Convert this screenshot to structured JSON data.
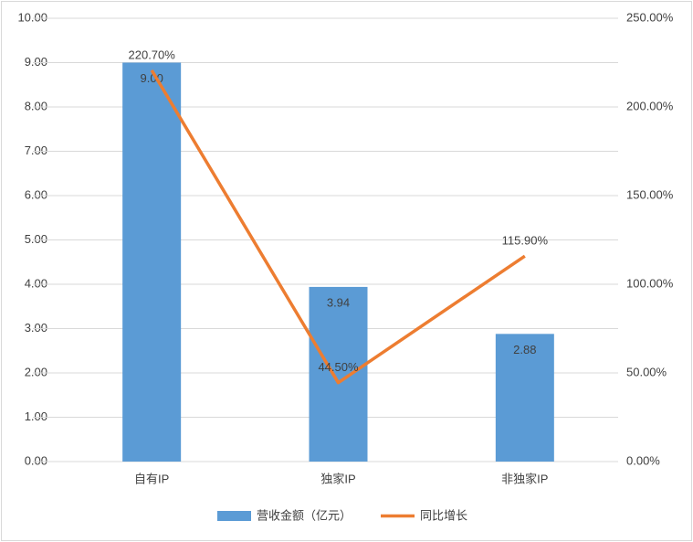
{
  "chart_data": {
    "type": "bar-line",
    "categories": [
      "自有IP",
      "独家IP",
      "非独家IP"
    ],
    "series": [
      {
        "name": "营收金额（亿元）",
        "type": "bar",
        "color": "#5b9bd5",
        "values": [
          9.0,
          3.94,
          2.88
        ],
        "value_labels": [
          "9.00",
          "3.94",
          "2.88"
        ]
      },
      {
        "name": "同比增长",
        "type": "line",
        "axis": "y2",
        "color": "#ed7d31",
        "values": [
          220.7,
          44.5,
          115.9
        ],
        "value_labels": [
          "220.70%",
          "44.50%",
          "115.90%"
        ]
      }
    ],
    "ylim": [
      0,
      10
    ],
    "yticks": [
      {
        "value": 0,
        "label": "0.00"
      },
      {
        "value": 1,
        "label": "1.00"
      },
      {
        "value": 2,
        "label": "2.00"
      },
      {
        "value": 3,
        "label": "3.00"
      },
      {
        "value": 4,
        "label": "4.00"
      },
      {
        "value": 5,
        "label": "5.00"
      },
      {
        "value": 6,
        "label": "6.00"
      },
      {
        "value": 7,
        "label": "7.00"
      },
      {
        "value": 8,
        "label": "8.00"
      },
      {
        "value": 9,
        "label": "9.00"
      },
      {
        "value": 10,
        "label": "10.00"
      }
    ],
    "y2lim": [
      0,
      250
    ],
    "y2ticks": [
      {
        "value": 0,
        "label": "0.00%"
      },
      {
        "value": 50,
        "label": "50.00%"
      },
      {
        "value": 100,
        "label": "100.00%"
      },
      {
        "value": 150,
        "label": "150.00%"
      },
      {
        "value": 200,
        "label": "200.00%"
      },
      {
        "value": 250,
        "label": "250.00%"
      }
    ],
    "grid": true,
    "legend": "bottom"
  }
}
